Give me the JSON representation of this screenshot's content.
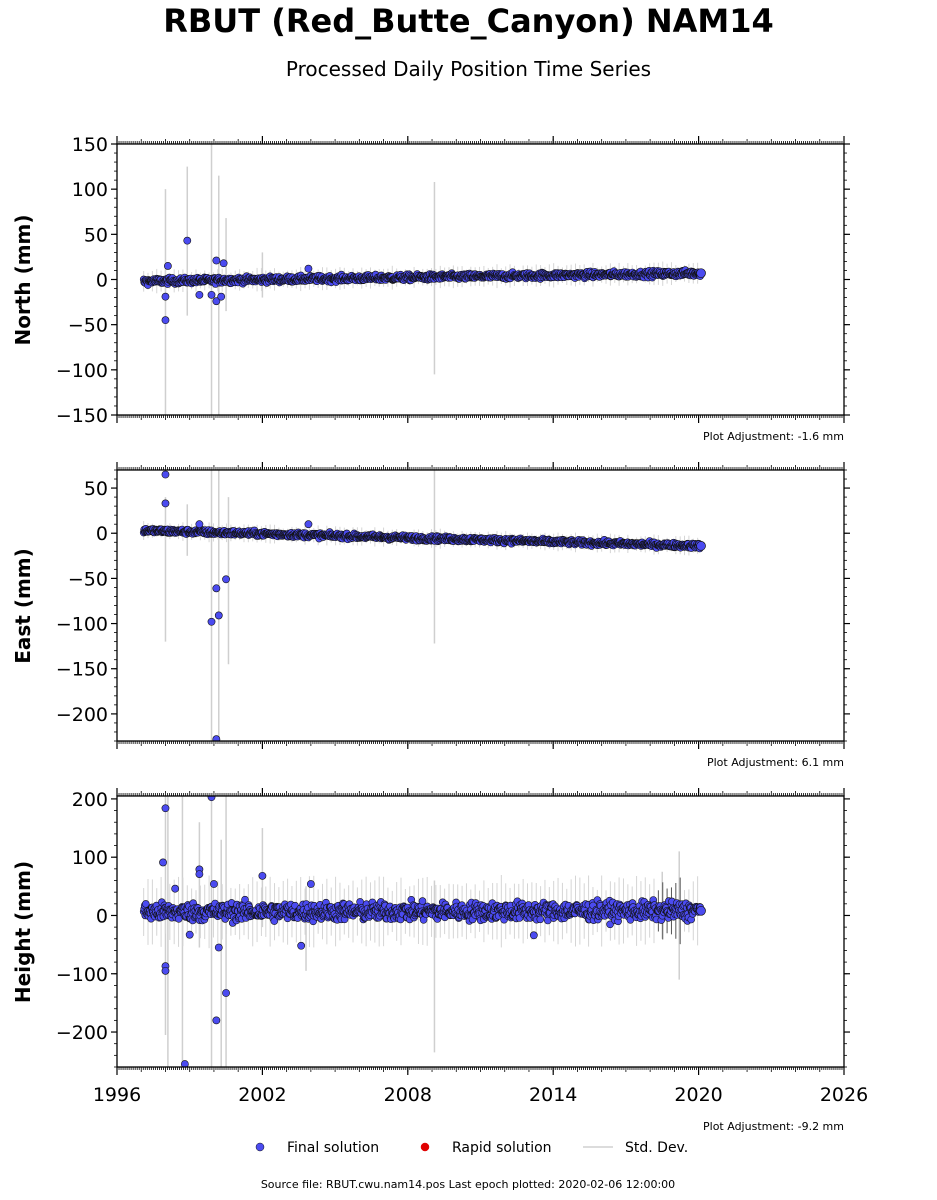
{
  "title": "RBUT (Red_Butte_Canyon) NAM14",
  "subtitle": "Processed Daily Position Time Series",
  "footer": "Source file: RBUT.cwu.nam14.pos  Last epoch plotted: 2020-02-06 12:00:00",
  "legend": [
    {
      "label": "Final solution",
      "color": "#4b4bf0",
      "kind": "marker"
    },
    {
      "label": "Rapid solution",
      "color": "#e00000",
      "kind": "marker"
    },
    {
      "label": "Std. Dev.",
      "color": "#d0d0d0",
      "kind": "line"
    }
  ],
  "chart_data": [
    {
      "type": "scatter",
      "ylabel": "North (mm)",
      "xlim": [
        1996,
        2026
      ],
      "ylim": [
        -150,
        150
      ],
      "yticks": [
        -150,
        -100,
        -50,
        0,
        50,
        100,
        150
      ],
      "xticks": [],
      "adjustment": "Plot Adjustment: -1.6 mm",
      "trend": {
        "x_start": 1997.1,
        "y_start": -2,
        "x_end": 2020.1,
        "y_end": 7
      },
      "scatter_amplitude": 3,
      "outliers": [
        {
          "x": 1998.0,
          "y": -45
        },
        {
          "x": 1998.0,
          "y": -19
        },
        {
          "x": 1998.1,
          "y": 15
        },
        {
          "x": 1998.9,
          "y": 43
        },
        {
          "x": 1999.4,
          "y": -17
        },
        {
          "x": 1999.9,
          "y": -17
        },
        {
          "x": 2000.1,
          "y": 21
        },
        {
          "x": 2000.1,
          "y": -24
        },
        {
          "x": 2000.4,
          "y": 18
        },
        {
          "x": 2000.3,
          "y": -19
        },
        {
          "x": 2003.9,
          "y": 12
        }
      ],
      "stddev_bars": [
        {
          "x": 1998.0,
          "y0": -150,
          "y1": 100
        },
        {
          "x": 1998.9,
          "y0": -40,
          "y1": 125
        },
        {
          "x": 1999.9,
          "y0": -150,
          "y1": 150
        },
        {
          "x": 2000.2,
          "y0": -150,
          "y1": 115
        },
        {
          "x": 2000.5,
          "y0": -35,
          "y1": 68
        },
        {
          "x": 2002.0,
          "y0": -20,
          "y1": 30
        },
        {
          "x": 2009.1,
          "y0": -105,
          "y1": 108
        }
      ]
    },
    {
      "type": "scatter",
      "ylabel": "East (mm)",
      "xlim": [
        1996,
        2026
      ],
      "ylim": [
        -230,
        70
      ],
      "yticks": [
        -200,
        -150,
        -100,
        -50,
        0,
        50
      ],
      "xticks": [],
      "adjustment": "Plot Adjustment: 6.1 mm",
      "trend": {
        "x_start": 1997.1,
        "y_start": 3,
        "x_end": 2020.1,
        "y_end": -14
      },
      "scatter_amplitude": 2.5,
      "outliers": [
        {
          "x": 1998.0,
          "y": 65
        },
        {
          "x": 1998.0,
          "y": 33
        },
        {
          "x": 1999.4,
          "y": 10
        },
        {
          "x": 1999.9,
          "y": -98
        },
        {
          "x": 2000.1,
          "y": -61
        },
        {
          "x": 2000.2,
          "y": -91
        },
        {
          "x": 2000.5,
          "y": -51
        },
        {
          "x": 2000.1,
          "y": -228
        },
        {
          "x": 2003.9,
          "y": 10
        }
      ],
      "stddev_bars": [
        {
          "x": 1998.0,
          "y0": -120,
          "y1": 40
        },
        {
          "x": 1998.9,
          "y0": -25,
          "y1": 32
        },
        {
          "x": 1999.9,
          "y0": -230,
          "y1": 70
        },
        {
          "x": 2000.2,
          "y0": -230,
          "y1": 70
        },
        {
          "x": 2000.6,
          "y0": -145,
          "y1": 40
        },
        {
          "x": 2009.1,
          "y0": -122,
          "y1": 70
        }
      ]
    },
    {
      "type": "scatter",
      "ylabel": "Height (mm)",
      "xlim": [
        1996,
        2026
      ],
      "ylim": [
        -260,
        205
      ],
      "yticks": [
        -200,
        -100,
        0,
        100,
        200
      ],
      "xticks": [
        1996,
        2002,
        2008,
        2014,
        2020,
        2026
      ],
      "adjustment": "Plot Adjustment: -9.2 mm",
      "trend": {
        "x_start": 1997.1,
        "y_start": 6,
        "x_end": 2020.1,
        "y_end": 8
      },
      "scatter_amplitude": 14,
      "outliers": [
        {
          "x": 1998.0,
          "y": 184
        },
        {
          "x": 1997.9,
          "y": 91
        },
        {
          "x": 1998.0,
          "y": -87
        },
        {
          "x": 1998.0,
          "y": -95
        },
        {
          "x": 1998.4,
          "y": 46
        },
        {
          "x": 1998.8,
          "y": -255
        },
        {
          "x": 1999.0,
          "y": -33
        },
        {
          "x": 1999.4,
          "y": 79
        },
        {
          "x": 1999.4,
          "y": 71
        },
        {
          "x": 1999.9,
          "y": 203
        },
        {
          "x": 2000.0,
          "y": 54
        },
        {
          "x": 2000.1,
          "y": -180
        },
        {
          "x": 2000.2,
          "y": -55
        },
        {
          "x": 2000.5,
          "y": -133
        },
        {
          "x": 2002.0,
          "y": 68
        },
        {
          "x": 2003.6,
          "y": -52
        },
        {
          "x": 2004.0,
          "y": 54
        },
        {
          "x": 2013.2,
          "y": -34
        }
      ],
      "stddev_bars": [
        {
          "x": 1998.0,
          "y0": -205,
          "y1": 205
        },
        {
          "x": 1998.1,
          "y0": -260,
          "y1": 205
        },
        {
          "x": 1998.7,
          "y0": -260,
          "y1": 205
        },
        {
          "x": 1999.4,
          "y0": -55,
          "y1": 160
        },
        {
          "x": 1999.9,
          "y0": -260,
          "y1": 205
        },
        {
          "x": 2000.3,
          "y0": -260,
          "y1": 130
        },
        {
          "x": 2000.5,
          "y0": -260,
          "y1": 205
        },
        {
          "x": 2002.0,
          "y0": -20,
          "y1": 150
        },
        {
          "x": 2003.8,
          "y0": -95,
          "y1": 50
        },
        {
          "x": 2009.1,
          "y0": -235,
          "y1": 60
        },
        {
          "x": 2018.5,
          "y0": -40,
          "y1": 75
        },
        {
          "x": 2019.2,
          "y0": -110,
          "y1": 110
        }
      ]
    }
  ]
}
